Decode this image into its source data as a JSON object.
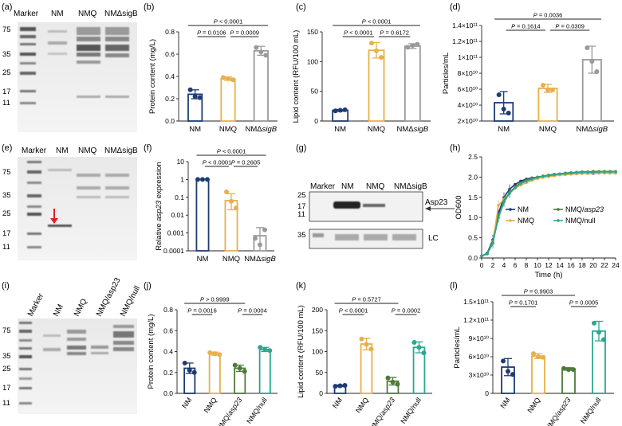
{
  "colors": {
    "nm": "#1f3b73",
    "nmq": "#e8b04a",
    "sigb": "#9a9a9a",
    "asp23": "#4f7a3a",
    "null": "#2aa88f",
    "red": "#e02020"
  },
  "gels": {
    "a": {
      "letter": "(a)",
      "lanes": [
        "Marker",
        "NM",
        "NMQ",
        "NMΔsigB"
      ],
      "ladder": [
        "75",
        "35",
        "25",
        "17",
        "11"
      ]
    },
    "e": {
      "letter": "(e)",
      "lanes": [
        "Marker",
        "NM",
        "NMQ",
        "NMΔsigB"
      ],
      "ladder": [
        "75",
        "35",
        "25",
        "17",
        "11"
      ]
    },
    "i": {
      "letter": "(i)",
      "lanes": [
        "Marker",
        "NM",
        "NMQ",
        "NMQ/asp23",
        "NMQ/null"
      ],
      "ladder": [
        "75",
        "35",
        "25",
        "17",
        "11"
      ]
    }
  },
  "western": {
    "letter": "(g)",
    "lanes": [
      "Marker",
      "NM",
      "NMQ",
      "NMΔsigB"
    ],
    "ladder_top": [
      "25",
      "17",
      "11"
    ],
    "ladder_bottom": [
      "35"
    ],
    "band_label": "Asp23",
    "lc_label": "LC"
  },
  "chart_data": [
    {
      "id": "b",
      "letter": "(b)",
      "type": "bar",
      "categories": [
        "NM",
        "NMQ",
        "NMΔsigB"
      ],
      "values": [
        0.24,
        0.38,
        0.63
      ],
      "errors": [
        0.04,
        0.015,
        0.04
      ],
      "points": [
        [
          0.28,
          0.22,
          0.21
        ],
        [
          0.39,
          0.38,
          0.37
        ],
        [
          0.66,
          0.62,
          0.59
        ]
      ],
      "ylabel": "Protein content (mg/L)",
      "ylim": [
        0,
        0.8
      ],
      "yticks": [
        "0.0",
        "0.2",
        "0.4",
        "0.6",
        "0.8"
      ],
      "ytick_values": [
        0,
        0.2,
        0.4,
        0.6,
        0.8
      ],
      "series_colors": [
        "nm",
        "nmq",
        "sigb"
      ],
      "pvalues": [
        {
          "text": "P < 0.0001",
          "from": 0,
          "to": 2
        },
        {
          "text": "P = 0.0106",
          "from": 0,
          "to": 1
        },
        {
          "text": "P = 0.0009",
          "from": 1,
          "to": 2
        }
      ]
    },
    {
      "id": "c",
      "letter": "(c)",
      "type": "bar",
      "categories": [
        "NM",
        "NMQ",
        "NMΔsigB"
      ],
      "values": [
        18,
        119,
        126
      ],
      "errors": [
        1.5,
        13,
        4
      ],
      "points": [
        [
          17,
          18,
          19
        ],
        [
          131,
          118,
          107
        ],
        [
          124,
          127,
          129
        ]
      ],
      "ylabel": "Lipid content (RFU/100 mL)",
      "ylim": [
        0,
        150
      ],
      "yticks": [
        "0",
        "50",
        "100",
        "150"
      ],
      "ytick_values": [
        0,
        50,
        100,
        150
      ],
      "series_colors": [
        "nm",
        "nmq",
        "sigb"
      ],
      "pvalues": [
        {
          "text": "P < 0.0001",
          "from": 0,
          "to": 2
        },
        {
          "text": "P < 0.0001",
          "from": 0,
          "to": 1
        },
        {
          "text": "P = 0.6172",
          "from": 1,
          "to": 2
        }
      ]
    },
    {
      "id": "d",
      "letter": "(d)",
      "type": "bar",
      "categories": [
        "NM",
        "NMQ",
        "NMΔsigB"
      ],
      "values": [
        43000000000.0,
        61000000000.0,
        97000000000.0
      ],
      "errors": [
        14000000000.0,
        5000000000.0,
        17000000000.0
      ],
      "points": [
        [
          53000000000.0,
          35000000000.0,
          30000000000.0
        ],
        [
          65000000000.0,
          59000000000.0,
          59000000000.0
        ],
        [
          112000000000.0,
          95000000000.0,
          82000000000.0
        ]
      ],
      "ylabel": "Particles/mL",
      "ylim": [
        20000000000.0,
        140000000000.0
      ],
      "yticks": [
        "2×10¹⁰",
        "4×10¹⁰",
        "6×10¹⁰",
        "8×10¹⁰",
        "1×10¹¹",
        "1.2×10¹¹",
        "1.4×10¹¹"
      ],
      "ytick_values": [
        20000000000.0,
        40000000000.0,
        60000000000.0,
        80000000000.0,
        100000000000.0,
        120000000000.0,
        140000000000.0
      ],
      "series_colors": [
        "nm",
        "nmq",
        "sigb"
      ],
      "pvalues": [
        {
          "text": "P = 0.0036",
          "from": 0,
          "to": 2
        },
        {
          "text": "P = 0.1614",
          "from": 0,
          "to": 1
        },
        {
          "text": "P = 0.0309",
          "from": 1,
          "to": 2
        }
      ]
    },
    {
      "id": "f",
      "letter": "(f)",
      "type": "bar",
      "log": true,
      "categories": [
        "NM",
        "NMQ",
        "NMΔsigB"
      ],
      "values": [
        1,
        0.065,
        0.0007
      ],
      "errors_log": [
        [
          1,
          1
        ],
        [
          0.02,
          0.16
        ],
        [
          0.0001,
          0.002
        ]
      ],
      "points": [
        [
          1,
          1,
          1
        ],
        [
          0.2,
          0.06,
          0.025
        ],
        [
          0.0005,
          0.00022,
          0.0015
        ]
      ],
      "ylabel": "Relative asp23 expression",
      "ylim": [
        0.0001,
        10
      ],
      "yticks": [
        "0.0001",
        "0.001",
        "0.01",
        "0.1",
        "1",
        "10"
      ],
      "ytick_values": [
        0.0001,
        0.001,
        0.01,
        0.1,
        1,
        10
      ],
      "series_colors": [
        "nm",
        "nmq",
        "sigb"
      ],
      "pvalues": [
        {
          "text": "P < 0.0001",
          "from": 0,
          "to": 2
        },
        {
          "text": "P < 0.0001",
          "from": 0,
          "to": 1
        },
        {
          "text": "P = 0.2605",
          "from": 1,
          "to": 2
        }
      ]
    },
    {
      "id": "h",
      "letter": "(h)",
      "type": "line",
      "title": "",
      "x": [
        0,
        1,
        2,
        3,
        4,
        5,
        6,
        7,
        8,
        9,
        10,
        11,
        12,
        13,
        14,
        15,
        16,
        17,
        18,
        19,
        20,
        21,
        22,
        23,
        24
      ],
      "series": [
        {
          "name": "NM",
          "color": "nm",
          "values": [
            0.05,
            0.12,
            0.45,
            1.1,
            1.5,
            1.7,
            1.82,
            1.9,
            1.95,
            1.98,
            2.0,
            2.02,
            2.04,
            2.05,
            2.06,
            2.07,
            2.08,
            2.08,
            2.09,
            2.09,
            2.09,
            2.1,
            2.1,
            2.1,
            2.1
          ]
        },
        {
          "name": "NMQ",
          "color": "nmq",
          "values": [
            0.05,
            0.1,
            0.4,
            1.3,
            1.45,
            1.6,
            1.72,
            1.8,
            1.86,
            1.92,
            1.96,
            1.99,
            2.01,
            2.03,
            2.05,
            2.06,
            2.07,
            2.08,
            2.09,
            2.09,
            2.1,
            2.1,
            2.1,
            2.1,
            2.1
          ]
        },
        {
          "name": "NMQ/asp23",
          "color": "asp23",
          "values": [
            0.05,
            0.1,
            0.38,
            1.0,
            1.4,
            1.62,
            1.76,
            1.86,
            1.92,
            1.97,
            2.0,
            2.03,
            2.05,
            2.07,
            2.08,
            2.1,
            2.11,
            2.12,
            2.13,
            2.13,
            2.14,
            2.14,
            2.14,
            2.14,
            2.14
          ]
        },
        {
          "name": "NMQ/null",
          "color": "null",
          "values": [
            0.05,
            0.1,
            0.36,
            1.0,
            1.38,
            1.6,
            1.74,
            1.84,
            1.9,
            1.95,
            1.99,
            2.02,
            2.04,
            2.06,
            2.08,
            2.09,
            2.1,
            2.11,
            2.12,
            2.12,
            2.12,
            2.13,
            2.13,
            2.13,
            2.13
          ]
        }
      ],
      "xlabel": "Time (h)",
      "ylabel": "OD600",
      "xlim": [
        0,
        24
      ],
      "ylim": [
        0,
        2.5
      ],
      "xticks": [
        "0",
        "2",
        "4",
        "6",
        "8",
        "10",
        "12",
        "14",
        "16",
        "18",
        "20",
        "22",
        "24"
      ],
      "yticks": [
        "0.0",
        "0.5",
        "1.0",
        "1.5",
        "2.0",
        "2.5"
      ],
      "ytick_values": [
        0,
        0.5,
        1,
        1.5,
        2,
        2.5
      ]
    },
    {
      "id": "j",
      "letter": "(j)",
      "type": "bar",
      "categories": [
        "NM",
        "NMQ",
        "NMQ/asp23",
        "NMQ/null"
      ],
      "values": [
        0.24,
        0.38,
        0.24,
        0.42
      ],
      "errors": [
        0.05,
        0.015,
        0.03,
        0.02
      ],
      "points": [
        [
          0.29,
          0.22,
          0.2
        ],
        [
          0.39,
          0.38,
          0.37
        ],
        [
          0.27,
          0.24,
          0.21
        ],
        [
          0.44,
          0.42,
          0.41
        ]
      ],
      "ylabel": "Protein content (mg/L)",
      "ylim": [
        0,
        0.8
      ],
      "yticks": [
        "0.0",
        "0.2",
        "0.4",
        "0.6",
        "0.8"
      ],
      "ytick_values": [
        0,
        0.2,
        0.4,
        0.6,
        0.8
      ],
      "series_colors": [
        "nm",
        "nmq",
        "asp23",
        "null"
      ],
      "pvalues": [
        {
          "text": "P > 0.9999",
          "from": 0,
          "to": 2
        },
        {
          "text": "P = 0.0016",
          "from": 0,
          "to": 1
        },
        {
          "text": "P = 0.0004",
          "from": 2,
          "to": 3
        }
      ]
    },
    {
      "id": "k",
      "letter": "(k)",
      "type": "bar",
      "categories": [
        "NM",
        "NMQ",
        "NMQ/asp23",
        "NMQ/null"
      ],
      "values": [
        18,
        118,
        29,
        110
      ],
      "errors": [
        2,
        14,
        9,
        13
      ],
      "points": [
        [
          17,
          18,
          19
        ],
        [
          130,
          117,
          106
        ],
        [
          37,
          27,
          22
        ],
        [
          122,
          110,
          97
        ]
      ],
      "ylabel": "Lipid content (RFU/100 mL)",
      "ylim": [
        0,
        200
      ],
      "yticks": [
        "0",
        "50",
        "100",
        "150",
        "200"
      ],
      "ytick_values": [
        0,
        50,
        100,
        150,
        200
      ],
      "series_colors": [
        "nm",
        "nmq",
        "asp23",
        "null"
      ],
      "pvalues": [
        {
          "text": "P = 0.5727",
          "from": 0,
          "to": 2
        },
        {
          "text": "P < 0.0001",
          "from": 0,
          "to": 1
        },
        {
          "text": "P = 0.0002",
          "from": 2,
          "to": 3
        }
      ]
    },
    {
      "id": "l",
      "letter": "(l)",
      "type": "bar",
      "categories": [
        "NM",
        "NMQ",
        "NMQ/asp23",
        "NMQ/null"
      ],
      "values": [
        43000000000.0,
        61000000000.0,
        40000000000.0,
        102000000000.0
      ],
      "errors": [
        14000000000.0,
        4000000000.0,
        2000000000.0,
        16000000000.0
      ],
      "points": [
        [
          53000000000.0,
          36000000000.0,
          31000000000.0
        ],
        [
          65000000000.0,
          60000000000.0,
          59000000000.0
        ],
        [
          41000000000.0,
          39000000000.0,
          39000000000.0
        ],
        [
          115000000000.0,
          100000000000.0,
          88000000000.0
        ]
      ],
      "ylabel": "Particles/mL",
      "ylim": [
        0,
        150000000000.0
      ],
      "yticks": [
        "0",
        "3×10¹⁰",
        "6×10¹⁰",
        "9×10¹⁰",
        "1.2×10¹¹",
        "1.5×10¹¹"
      ],
      "ytick_values": [
        0,
        30000000000.0,
        60000000000.0,
        90000000000.0,
        120000000000.0,
        150000000000.0
      ],
      "series_colors": [
        "nm",
        "nmq",
        "asp23",
        "null"
      ],
      "pvalues": [
        {
          "text": "P = 0.9903",
          "from": 0,
          "to": 2
        },
        {
          "text": "P = 0.1701",
          "from": 0,
          "to": 1
        },
        {
          "text": "P = 0.0005",
          "from": 2,
          "to": 3
        }
      ]
    }
  ]
}
